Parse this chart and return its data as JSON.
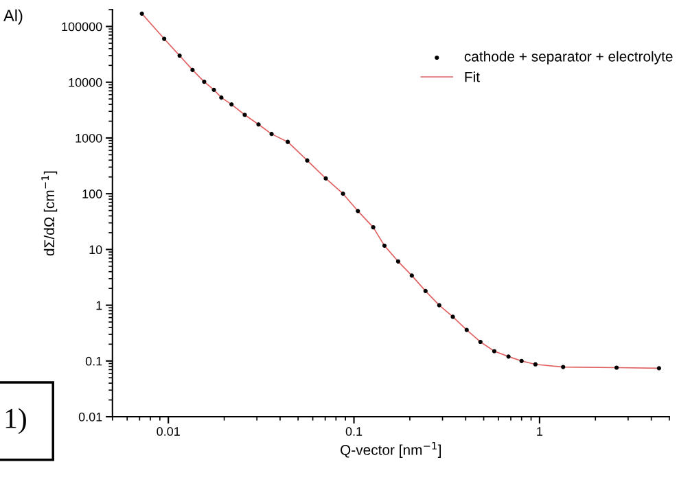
{
  "chart_data": {
    "type": "scatter",
    "xlabel": "Q-vector [nm$^{−1}$]",
    "ylabel": "dΣ/dΩ [cm$^{−1}$]",
    "annotations": [
      "Al)",
      "1)"
    ],
    "log": "xy",
    "xlim": [
      0.005,
      5
    ],
    "ylim": [
      0.01,
      200000
    ],
    "xticks": [
      0.01,
      0.1,
      1
    ],
    "yticks": [
      0.01,
      0.1,
      1,
      10,
      100,
      1000,
      10000,
      100000
    ],
    "grid": false,
    "legend": "top right",
    "series": [
      {
        "name": "cathode + separator + electrolyte",
        "marker": "circle",
        "color": "#000000",
        "x": [
          0.0072,
          0.0095,
          0.0115,
          0.0135,
          0.0156,
          0.0176,
          0.0193,
          0.0219,
          0.0258,
          0.0306,
          0.036,
          0.044,
          0.056,
          0.0705,
          0.0873,
          0.105,
          0.127,
          0.146,
          0.173,
          0.205,
          0.243,
          0.288,
          0.341,
          0.405,
          0.48,
          0.57,
          0.68,
          0.8,
          0.95,
          1.34,
          2.6,
          4.4
        ],
        "values": [
          170000,
          60000,
          30000,
          16600,
          10200,
          7300,
          5300,
          4000,
          2600,
          1750,
          1180,
          850,
          395,
          188,
          100,
          49,
          25,
          11.7,
          6.1,
          3.4,
          1.8,
          1.0,
          0.62,
          0.36,
          0.22,
          0.15,
          0.12,
          0.1,
          0.087,
          0.078,
          0.076,
          0.074
        ]
      },
      {
        "name": "Fit",
        "type": "line",
        "marker": "none",
        "line_style": "solid",
        "color": "#e06060",
        "x": [
          0.0072,
          0.0095,
          0.0115,
          0.0135,
          0.0156,
          0.0176,
          0.0193,
          0.0219,
          0.0258,
          0.0306,
          0.036,
          0.044,
          0.056,
          0.0705,
          0.0873,
          0.105,
          0.127,
          0.146,
          0.173,
          0.205,
          0.243,
          0.288,
          0.341,
          0.405,
          0.48,
          0.57,
          0.68,
          0.8,
          0.95,
          1.34,
          2.6,
          4.4
        ],
        "values": [
          170000,
          60000,
          30000,
          16600,
          10200,
          7300,
          5300,
          4000,
          2600,
          1750,
          1180,
          850,
          395,
          188,
          100,
          49,
          25,
          11.7,
          6.1,
          3.4,
          1.8,
          1.0,
          0.62,
          0.36,
          0.22,
          0.15,
          0.12,
          0.1,
          0.087,
          0.078,
          0.076,
          0.074
        ]
      }
    ]
  }
}
